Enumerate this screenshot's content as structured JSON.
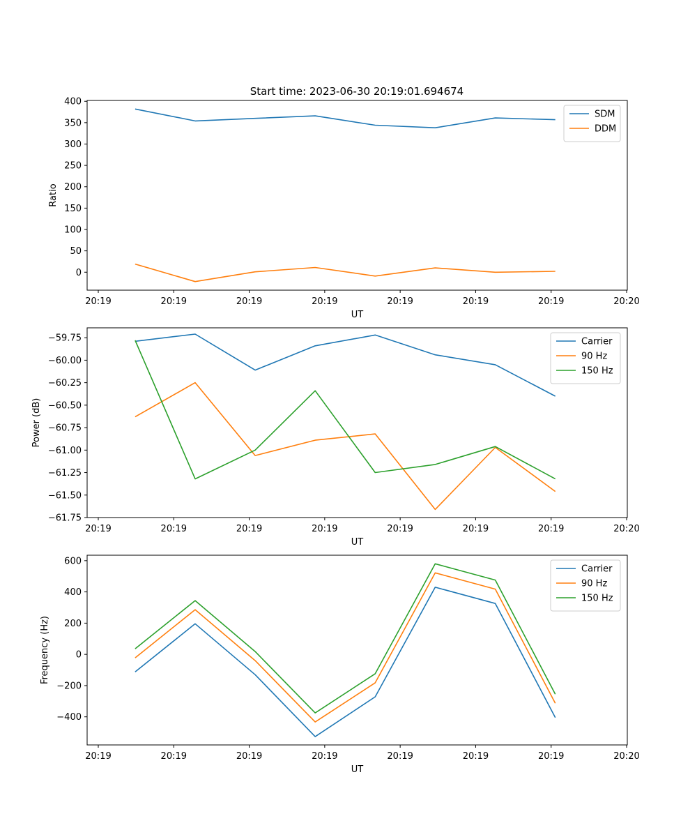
{
  "figure": {
    "title": "Start time: 2023-06-30 20:19:01.694674"
  },
  "chart_data": [
    {
      "type": "line",
      "title": "Start time: 2023-06-30 20:19:01.694674",
      "xlabel": "UT",
      "ylabel": "Ratio",
      "x_tick_labels": [
        "20:19",
        "20:19",
        "20:19",
        "20:19",
        "20:19",
        "20:19",
        "20:19",
        "20:20"
      ],
      "x": [
        1,
        2,
        3,
        4,
        5,
        6,
        7,
        8
      ],
      "xlim": [
        0.2,
        9.2
      ],
      "ylim": [
        -42,
        402
      ],
      "yticks": [
        0,
        50,
        100,
        150,
        200,
        250,
        300,
        350,
        400
      ],
      "legend": "top-right",
      "series": [
        {
          "name": "SDM",
          "color": "#1f77b4",
          "values": [
            382,
            354,
            360,
            366,
            344,
            338,
            361,
            357
          ]
        },
        {
          "name": "DDM",
          "color": "#ff7f0e",
          "values": [
            19,
            -22,
            1,
            11,
            -9,
            10,
            0,
            2
          ]
        }
      ]
    },
    {
      "type": "line",
      "xlabel": "UT",
      "ylabel": "Power (dB)",
      "x_tick_labels": [
        "20:19",
        "20:19",
        "20:19",
        "20:19",
        "20:19",
        "20:19",
        "20:19",
        "20:20"
      ],
      "x": [
        1,
        2,
        3,
        4,
        5,
        6,
        7,
        8
      ],
      "xlim": [
        0.2,
        9.2
      ],
      "ylim": [
        -61.75,
        -59.64
      ],
      "yticks": [
        -61.75,
        -61.5,
        -61.25,
        -61.0,
        -60.75,
        -60.5,
        -60.25,
        -60.0,
        -59.75
      ],
      "ytick_labels": [
        "−61.75",
        "−61.50",
        "−61.25",
        "−61.00",
        "−60.75",
        "−60.50",
        "−60.25",
        "−60.00",
        "−59.75"
      ],
      "legend": "top-right",
      "series": [
        {
          "name": "Carrier",
          "color": "#1f77b4",
          "values": [
            -59.79,
            -59.71,
            -60.11,
            -59.84,
            -59.72,
            -59.94,
            -60.05,
            -60.4
          ]
        },
        {
          "name": "90 Hz",
          "color": "#ff7f0e",
          "values": [
            -60.63,
            -60.25,
            -61.06,
            -60.89,
            -60.82,
            -61.66,
            -60.97,
            -61.46
          ]
        },
        {
          "name": "150 Hz",
          "color": "#2ca02c",
          "values": [
            -59.78,
            -61.32,
            -61.0,
            -60.34,
            -61.25,
            -61.16,
            -60.96,
            -61.32
          ]
        }
      ]
    },
    {
      "type": "line",
      "xlabel": "UT",
      "ylabel": "Frequency (Hz)",
      "x_tick_labels": [
        "20:19",
        "20:19",
        "20:19",
        "20:19",
        "20:19",
        "20:19",
        "20:19",
        "20:20"
      ],
      "x": [
        1,
        2,
        3,
        4,
        5,
        6,
        7,
        8
      ],
      "xlim": [
        0.2,
        9.2
      ],
      "ylim": [
        -580,
        635
      ],
      "yticks": [
        -400,
        -200,
        0,
        200,
        400,
        600
      ],
      "ytick_labels": [
        "−400",
        "−200",
        "0",
        "200",
        "400",
        "600"
      ],
      "legend": "top-right",
      "series": [
        {
          "name": "Carrier",
          "color": "#1f77b4",
          "values": [
            -112,
            196,
            -130,
            -527,
            -272,
            430,
            326,
            -405
          ]
        },
        {
          "name": "90 Hz",
          "color": "#ff7f0e",
          "values": [
            -22,
            286,
            -40,
            -433,
            -182,
            522,
            418,
            -313
          ]
        },
        {
          "name": "150 Hz",
          "color": "#2ca02c",
          "values": [
            36,
            344,
            18,
            -375,
            -124,
            580,
            476,
            -255
          ]
        }
      ]
    }
  ]
}
